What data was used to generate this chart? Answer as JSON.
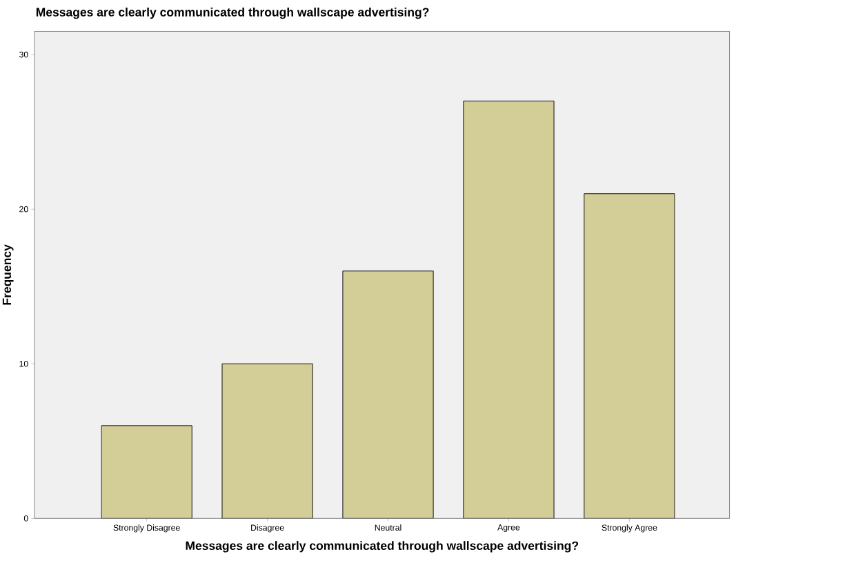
{
  "chart_data": {
    "type": "bar",
    "title": "Messages are clearly communicated through wallscape advertising?",
    "xlabel": "Messages are clearly communicated through wallscape advertising?",
    "ylabel": "Frequency",
    "categories": [
      "Strongly Disagree",
      "Disagree",
      "Neutral",
      "Agree",
      "Strongly Agree"
    ],
    "values": [
      6,
      10,
      16,
      27,
      21
    ],
    "color": "#d3ce97",
    "ylim": [
      0,
      31.5
    ],
    "yticks": [
      0,
      10,
      20,
      30
    ]
  }
}
